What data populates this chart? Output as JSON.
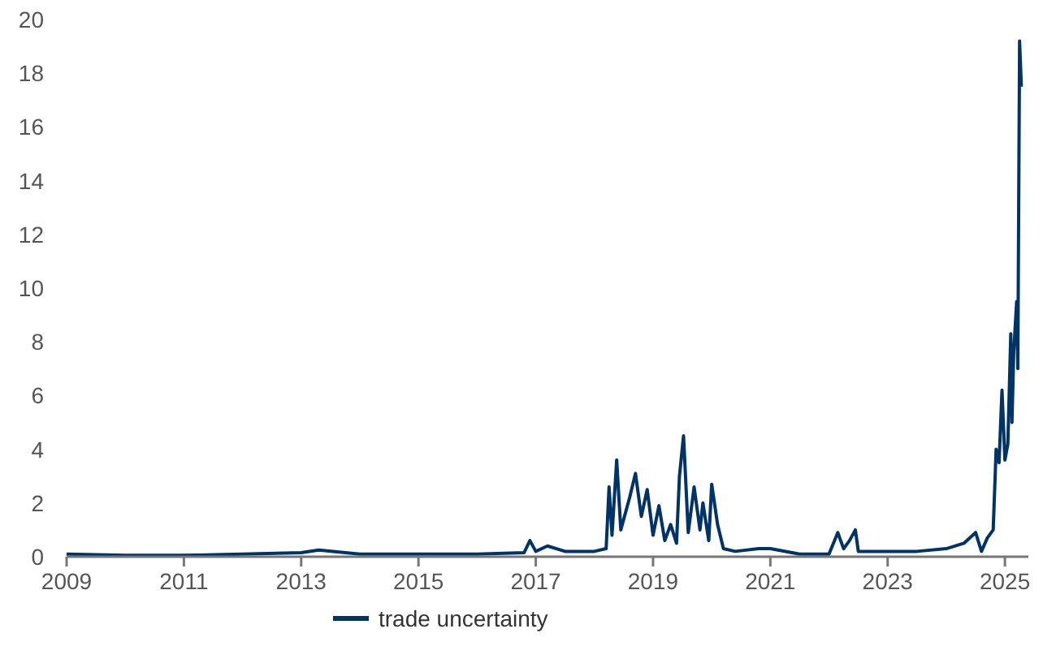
{
  "chart_data": {
    "type": "line",
    "xlim": [
      2009,
      2025.4
    ],
    "xticks": [
      2009,
      2011,
      2013,
      2015,
      2017,
      2019,
      2021,
      2023,
      2025
    ],
    "ylim": [
      0,
      20
    ],
    "yticks": [
      0,
      2,
      4,
      6,
      8,
      10,
      12,
      14,
      16,
      18,
      20
    ],
    "grid": false,
    "legend": "bottom",
    "series": [
      {
        "name": "trade uncertainty",
        "color": "#003366",
        "x": [
          2009,
          2010,
          2011,
          2012,
          2013,
          2013.3,
          2014,
          2015,
          2016,
          2016.8,
          2016.9,
          2017,
          2017.2,
          2017.5,
          2018,
          2018.2,
          2018.25,
          2018.3,
          2018.38,
          2018.45,
          2018.6,
          2018.7,
          2018.8,
          2018.9,
          2019,
          2019.1,
          2019.2,
          2019.3,
          2019.4,
          2019.45,
          2019.52,
          2019.6,
          2019.7,
          2019.8,
          2019.85,
          2019.95,
          2020,
          2020.1,
          2020.2,
          2020.4,
          2020.8,
          2021,
          2021.5,
          2022,
          2022.15,
          2022.25,
          2022.35,
          2022.45,
          2022.5,
          2023,
          2023.5,
          2024,
          2024.3,
          2024.5,
          2024.6,
          2024.7,
          2024.8,
          2024.85,
          2024.9,
          2024.95,
          2025,
          2025.05,
          2025.1,
          2025.12,
          2025.15,
          2025.2,
          2025.22,
          2025.25,
          2025.28
        ],
        "values": [
          0.1,
          0.05,
          0.05,
          0.1,
          0.15,
          0.25,
          0.1,
          0.1,
          0.1,
          0.15,
          0.6,
          0.2,
          0.4,
          0.2,
          0.2,
          0.3,
          2.6,
          0.8,
          3.6,
          1,
          2.2,
          3.1,
          1.5,
          2.5,
          0.8,
          1.9,
          0.6,
          1.2,
          0.5,
          3,
          4.5,
          0.9,
          2.6,
          1,
          2,
          0.6,
          2.7,
          1.2,
          0.3,
          0.2,
          0.3,
          0.3,
          0.1,
          0.1,
          0.9,
          0.3,
          0.6,
          1,
          0.2,
          0.2,
          0.2,
          0.3,
          0.5,
          0.9,
          0.2,
          0.7,
          1,
          4,
          3.5,
          6.2,
          3.6,
          4.2,
          8.3,
          5,
          7.6,
          9.5,
          7,
          19.2,
          17.5
        ]
      }
    ]
  }
}
